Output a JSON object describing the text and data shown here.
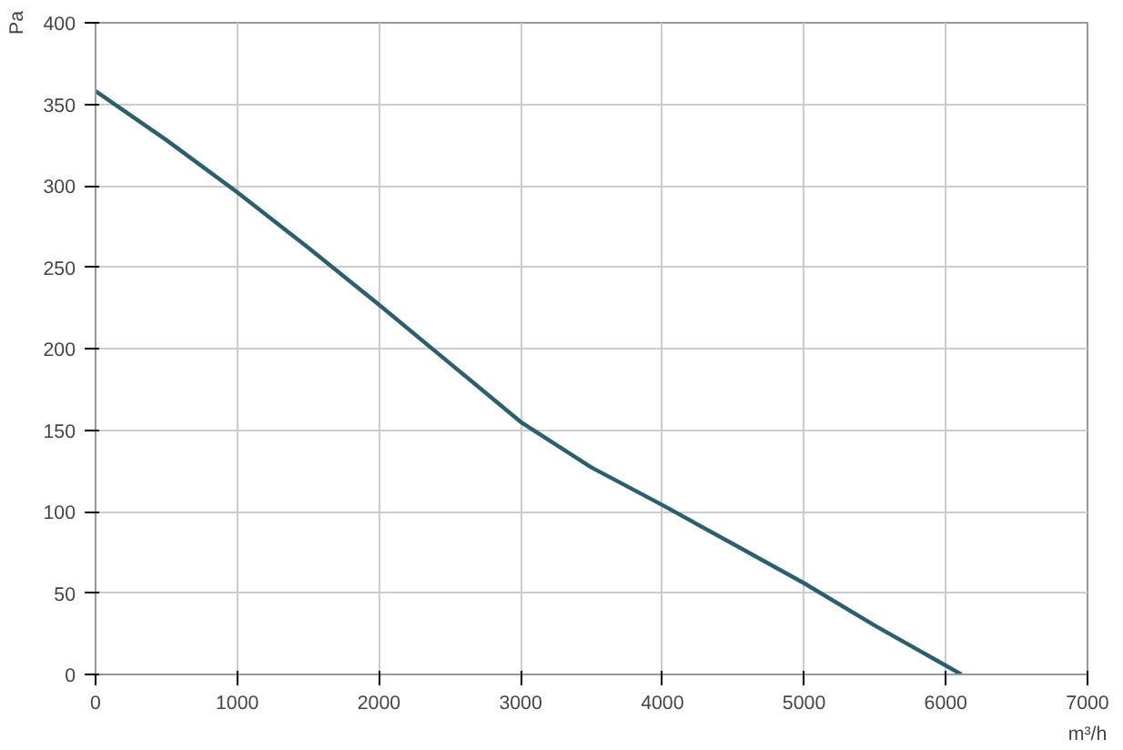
{
  "chart_data": {
    "type": "line",
    "xlabel": "m³/h",
    "ylabel": "Pa",
    "x": [
      0,
      500,
      1000,
      1500,
      2000,
      2500,
      3000,
      3500,
      4000,
      4500,
      5000,
      5500,
      6110
    ],
    "series": [
      {
        "color": "#2b5f6e",
        "values": [
          358,
          328,
          296,
          262,
          227,
          191,
          155,
          127,
          104,
          80,
          56,
          30,
          0
        ]
      }
    ],
    "xlim": [
      0,
      7000
    ],
    "ylim": [
      0,
      400
    ],
    "xticks": [
      0,
      1000,
      2000,
      3000,
      4000,
      5000,
      6000,
      7000
    ],
    "yticks": [
      0,
      50,
      100,
      150,
      200,
      250,
      300,
      350,
      400
    ],
    "grid": true,
    "marker": "none",
    "line_style": "solid"
  }
}
